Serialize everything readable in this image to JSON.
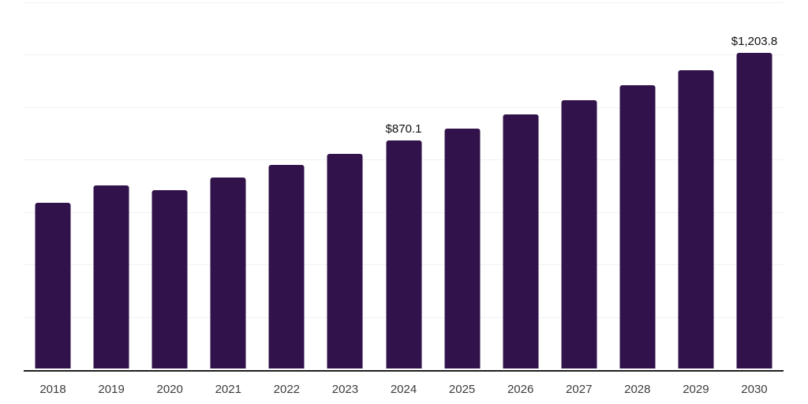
{
  "chart_data": {
    "type": "bar",
    "title": "",
    "xlabel": "",
    "ylabel": "",
    "categories": [
      "2018",
      "2019",
      "2020",
      "2021",
      "2022",
      "2023",
      "2024",
      "2025",
      "2026",
      "2027",
      "2028",
      "2029",
      "2030"
    ],
    "values": [
      631,
      700,
      681,
      730,
      777,
      819,
      870.1,
      916,
      969,
      1025,
      1080,
      1138,
      1203.8
    ],
    "data_labels": {
      "2024": "$870.1",
      "2030": "$1,203.8"
    },
    "ylim": [
      0,
      1400
    ],
    "gridline_step": 200,
    "grid": "horizontal-only",
    "legend": "none",
    "colors": {
      "bar": "#31124A",
      "axis": "#1f1f1f",
      "gridline": "#f1f1f3",
      "tick_label": "#3c3c3c",
      "data_label": "#0f0f0f"
    }
  }
}
